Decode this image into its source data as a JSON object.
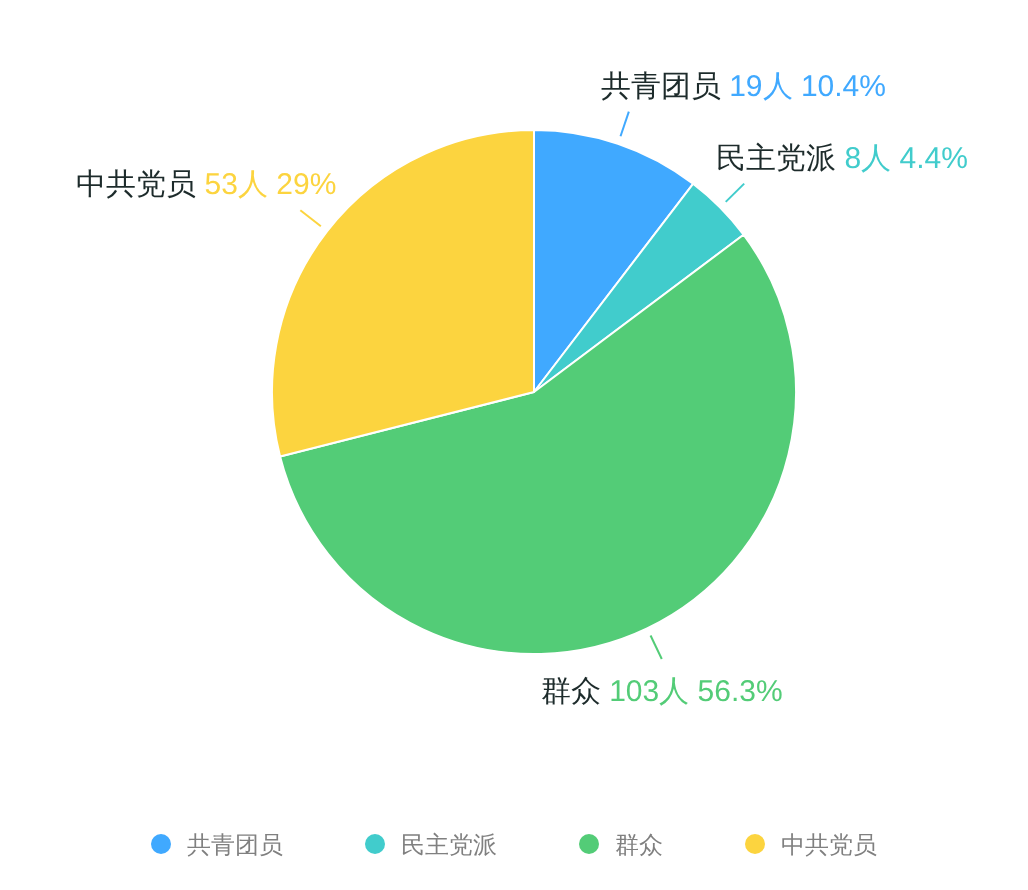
{
  "chart_data": {
    "type": "pie",
    "categories": [
      "共青团员",
      "民主党派",
      "群众",
      "中共党员"
    ],
    "values": [
      19,
      8,
      103,
      53
    ],
    "colors": [
      "#40a9ff",
      "#41cccc",
      "#53cc77",
      "#fcd43f"
    ],
    "value_labels": [
      "19人 10.4%",
      "8人 4.4%",
      "103人 56.3%",
      "53人 29%"
    ],
    "legend": "bottom"
  }
}
